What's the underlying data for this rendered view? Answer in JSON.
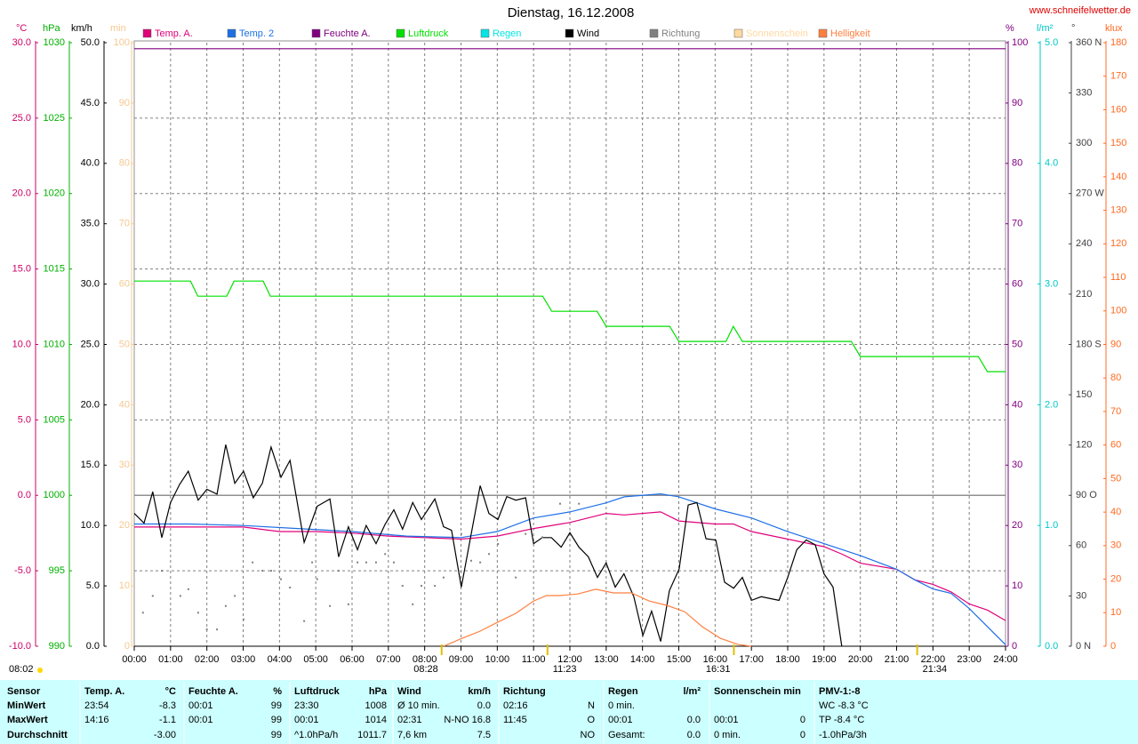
{
  "chart_data": {
    "type": "line",
    "title": "Dienstag, 16.12.2008",
    "watermark": "www.schneifelwetter.de",
    "sunrise_note": "08:02",
    "grid": true,
    "xlim": [
      0,
      24
    ],
    "xticks": [
      {
        "value": 0,
        "label": "00:00"
      },
      {
        "value": 1,
        "label": "01:00"
      },
      {
        "value": 2,
        "label": "02:00"
      },
      {
        "value": 3,
        "label": "03:00"
      },
      {
        "value": 4,
        "label": "04:00"
      },
      {
        "value": 5,
        "label": "05:00"
      },
      {
        "value": 6,
        "label": "06:00"
      },
      {
        "value": 7,
        "label": "07:00"
      },
      {
        "value": 8,
        "label": "08:00"
      },
      {
        "value": 9,
        "label": "09:00"
      },
      {
        "value": 10,
        "label": "10:00"
      },
      {
        "value": 11,
        "label": "11:00"
      },
      {
        "value": 12,
        "label": "12:00"
      },
      {
        "value": 13,
        "label": "13:00"
      },
      {
        "value": 14,
        "label": "14:00"
      },
      {
        "value": 15,
        "label": "15:00"
      },
      {
        "value": 16,
        "label": "16:00"
      },
      {
        "value": 17,
        "label": "17:00"
      },
      {
        "value": 18,
        "label": "18:00"
      },
      {
        "value": 19,
        "label": "19:00"
      },
      {
        "value": 20,
        "label": "20:00"
      },
      {
        "value": 21,
        "label": "21:00"
      },
      {
        "value": 22,
        "label": "22:00"
      },
      {
        "value": 23,
        "label": "23:00"
      },
      {
        "value": 24,
        "label": "24:00"
      }
    ],
    "axes": [
      {
        "label": "°C",
        "color": "#cc0066",
        "ylim": [
          -10,
          30
        ],
        "yticks": [
          {
            "value": -10,
            "label": "-10.0"
          },
          {
            "value": -5,
            "label": "-5.0"
          },
          {
            "value": 0,
            "label": "0.0"
          },
          {
            "value": 5,
            "label": "5.0"
          },
          {
            "value": 10,
            "label": "10.0"
          },
          {
            "value": 15,
            "label": "15.0"
          },
          {
            "value": 20,
            "label": "20.0"
          },
          {
            "value": 25,
            "label": "25.0"
          },
          {
            "value": 30,
            "label": "30.0"
          }
        ]
      },
      {
        "label": "hPa",
        "color": "#00b000",
        "ylim": [
          990,
          1030
        ],
        "yticks": [
          990,
          995,
          1000,
          1005,
          1010,
          1015,
          1020,
          1025,
          1030
        ]
      },
      {
        "label": "km/h",
        "color": "#000000",
        "ylim": [
          0,
          50
        ],
        "yticks": [
          {
            "value": 0,
            "label": "0.0"
          },
          {
            "value": 5,
            "label": "5.0"
          },
          {
            "value": 10,
            "label": "10.0"
          },
          {
            "value": 15,
            "label": "15.0"
          },
          {
            "value": 20,
            "label": "20.0"
          },
          {
            "value": 25,
            "label": "25.0"
          },
          {
            "value": 30,
            "label": "30.0"
          },
          {
            "value": 35,
            "label": "35.0"
          },
          {
            "value": 40,
            "label": "40.0"
          },
          {
            "value": 45,
            "label": "45.0"
          },
          {
            "value": 50,
            "label": "50.0"
          }
        ]
      },
      {
        "label": "min",
        "color": "#f5c890",
        "ylim": [
          0,
          100
        ],
        "yticks": [
          0,
          10,
          20,
          30,
          40,
          50,
          60,
          70,
          80,
          90,
          100
        ]
      },
      {
        "label": "%",
        "color": "#800080",
        "ylim": [
          0,
          100
        ],
        "yticks": [
          0,
          10,
          20,
          30,
          40,
          50,
          60,
          70,
          80,
          90,
          100
        ]
      },
      {
        "label": "l/m²",
        "color": "#00c8c8",
        "ylim": [
          0,
          5
        ],
        "yticks": [
          {
            "value": 0,
            "label": "0.0"
          },
          {
            "value": 1,
            "label": "1.0"
          },
          {
            "value": 2,
            "label": "2.0"
          },
          {
            "value": 3,
            "label": "3.0"
          },
          {
            "value": 4,
            "label": "4.0"
          },
          {
            "value": 5,
            "label": "5.0"
          }
        ]
      },
      {
        "label": "°",
        "color": "#404040",
        "ylim": [
          0,
          360
        ],
        "yticks": [
          {
            "value": 0,
            "label": "0 N"
          },
          30,
          60,
          {
            "value": 90,
            "label": "90 O"
          },
          120,
          150,
          {
            "value": 180,
            "label": "180 S"
          },
          210,
          240,
          {
            "value": 270,
            "label": "270 W"
          },
          300,
          330,
          {
            "value": 360,
            "label": "360 N"
          }
        ]
      },
      {
        "label": "klux",
        "color": "#ff6a20",
        "ylim": [
          0,
          180
        ],
        "yticks": [
          0,
          10,
          20,
          30,
          40,
          50,
          60,
          70,
          80,
          90,
          100,
          110,
          120,
          130,
          140,
          150,
          160,
          170,
          180
        ]
      }
    ],
    "reference_lines": [
      {
        "axis": 0,
        "value": 0
      }
    ],
    "series": [
      {
        "name": "Temp. A.",
        "type": "line",
        "axis": 0,
        "color": "#e0007a",
        "x": [
          0,
          1,
          2,
          3,
          4,
          5,
          6,
          7,
          8,
          9,
          10,
          11,
          12,
          13,
          13.5,
          14.5,
          15,
          16,
          16.5,
          17,
          18,
          19,
          19.5,
          20,
          21,
          21.5,
          22,
          22.5,
          23,
          23.5,
          24
        ],
        "values": [
          -2.1,
          -2.1,
          -2.1,
          -2.1,
          -2.4,
          -2.4,
          -2.5,
          -2.7,
          -2.8,
          -2.9,
          -2.7,
          -2.2,
          -1.8,
          -1.2,
          -1.3,
          -1.1,
          -1.7,
          -1.9,
          -1.9,
          -2.4,
          -2.9,
          -3.4,
          -3.9,
          -4.5,
          -4.9,
          -5.6,
          -5.9,
          -6.4,
          -7.2,
          -7.6,
          -8.3
        ]
      },
      {
        "name": "Temp. 2",
        "type": "line",
        "axis": 0,
        "color": "#1e6fe6",
        "x": [
          0,
          1.5,
          3,
          4.5,
          6,
          7.5,
          9,
          10,
          11,
          12,
          13,
          13.5,
          14.5,
          15,
          15.5,
          16,
          17,
          18,
          19,
          20,
          21,
          21.5,
          22,
          22.5,
          23,
          23.5,
          24
        ],
        "values": [
          -1.9,
          -1.9,
          -2.0,
          -2.2,
          -2.4,
          -2.7,
          -2.8,
          -2.4,
          -1.5,
          -1.1,
          -0.5,
          -0.1,
          0.1,
          -0.1,
          -0.5,
          -0.9,
          -1.5,
          -2.4,
          -3.2,
          -4.0,
          -4.9,
          -5.6,
          -6.2,
          -6.5,
          -7.5,
          -8.7,
          -9.9
        ]
      },
      {
        "name": "Feuchte A.",
        "type": "line",
        "axis": 4,
        "color": "#800080",
        "x": [
          0,
          24
        ],
        "values": [
          99,
          99
        ]
      },
      {
        "name": "Luftdruck",
        "type": "line",
        "axis": 1,
        "color": "#00e000",
        "x": [
          0,
          1.55,
          1.75,
          2.55,
          2.75,
          3.55,
          3.75,
          11.25,
          11.5,
          12.75,
          13,
          14.75,
          15,
          16.3,
          16.5,
          16.75,
          19.75,
          20,
          23.25,
          23.5,
          24
        ],
        "values": [
          1014.2,
          1014.2,
          1013.2,
          1013.2,
          1014.2,
          1014.2,
          1013.2,
          1013.2,
          1012.2,
          1012.2,
          1011.2,
          1011.2,
          1010.2,
          1010.2,
          1011.2,
          1010.2,
          1010.2,
          1009.2,
          1009.2,
          1008.2,
          1008.2
        ]
      },
      {
        "name": "Regen",
        "type": "line",
        "axis": 5,
        "color": "#00e5e5",
        "x": [],
        "values": []
      },
      {
        "name": "Wind",
        "type": "line",
        "axis": 2,
        "color": "#000000",
        "x": [
          0,
          0.27,
          0.51,
          0.76,
          1,
          1.25,
          1.49,
          1.76,
          2,
          2.28,
          2.52,
          2.77,
          3.01,
          3.28,
          3.53,
          3.77,
          4.04,
          4.29,
          4.68,
          5.04,
          5.39,
          5.63,
          5.9,
          6.15,
          6.39,
          6.66,
          6.91,
          7.15,
          7.39,
          7.67,
          7.91,
          8.28,
          8.52,
          8.74,
          9.01,
          9.53,
          9.77,
          10.02,
          10.26,
          10.51,
          10.78,
          11,
          11.24,
          11.49,
          11.76,
          12,
          12.25,
          12.51,
          12.76,
          13,
          13.25,
          13.49,
          13.76,
          14.01,
          14.25,
          14.5,
          14.74,
          15.01,
          15.26,
          15.5,
          15.75,
          16.02,
          16.26,
          16.51,
          16.75,
          17,
          17.27,
          17.76,
          18,
          18.25,
          18.51,
          18.76,
          19,
          19.25,
          19.49
        ],
        "values": [
          11.0,
          10.2,
          12.8,
          9.0,
          11.9,
          13.4,
          14.5,
          12.1,
          13.0,
          12.6,
          16.7,
          13.5,
          14.5,
          12.3,
          13.5,
          16.5,
          14.0,
          15.4,
          8.6,
          11.6,
          12.2,
          7.4,
          9.9,
          8.0,
          10.0,
          8.5,
          10.1,
          11.3,
          9.7,
          11.9,
          10.5,
          12.2,
          9.9,
          9.6,
          4.9,
          13.3,
          11.0,
          10.5,
          12.4,
          12.1,
          12.3,
          8.5,
          9.0,
          9.0,
          8.2,
          9.4,
          8.2,
          7.4,
          5.7,
          6.9,
          4.9,
          6.0,
          4.1,
          0.9,
          2.9,
          0.4,
          4.6,
          6.4,
          11.7,
          11.9,
          8.9,
          8.8,
          5.3,
          4.8,
          5.7,
          3.8,
          4.1,
          3.8,
          5.7,
          8.0,
          8.8,
          8.4,
          6.0,
          4.9,
          0.0
        ]
      },
      {
        "name": "Richtung",
        "type": "scatter",
        "axis": 6,
        "color": "#808080",
        "x": [
          0.24,
          0.51,
          0.76,
          1.27,
          1.49,
          1.76,
          2,
          2.28,
          2.52,
          2.77,
          3.01,
          3.26,
          3.53,
          3.77,
          4.04,
          4.29,
          4.68,
          4.9,
          5.04,
          5.39,
          5.63,
          5.9,
          6.15,
          6.39,
          6.66,
          6.91,
          7.15,
          7.39,
          7.67,
          7.91,
          8.28,
          8.52,
          9.01,
          9.28,
          9.53,
          9.77,
          10.02,
          10.51,
          10.78,
          11.24,
          11.73,
          12.25
        ],
        "values": [
          20,
          30,
          45,
          30,
          34,
          20,
          10,
          10,
          24,
          30,
          16,
          50,
          45,
          45,
          40,
          35,
          15,
          50,
          40,
          24,
          45,
          25,
          50,
          50,
          50,
          55,
          50,
          36,
          25,
          36,
          36,
          41,
          67,
          51,
          50,
          55,
          61,
          41,
          67,
          65,
          85,
          85
        ]
      },
      {
        "name": "Sonnenschein",
        "type": "line",
        "axis": 3,
        "color": "#ffd9a0",
        "x": [],
        "values": []
      },
      {
        "name": "Helligkeit",
        "type": "line",
        "axis": 7,
        "color": "#ff7f3f",
        "x": [
          8.52,
          9.04,
          9.53,
          10.02,
          10.51,
          11,
          11.36,
          11.73,
          12.22,
          12.71,
          13.2,
          13.69,
          14.18,
          14.67,
          15.16,
          15.65,
          16.14,
          16.63,
          17
        ],
        "values": [
          0,
          2.4,
          4.5,
          7.2,
          9.8,
          13.5,
          15.1,
          15.1,
          15.6,
          17.0,
          15.9,
          15.9,
          13.5,
          12.2,
          10.3,
          5.8,
          2.4,
          0.5,
          0
        ]
      }
    ],
    "annotations": [
      {
        "label": "08:28",
        "x": 8.467
      },
      {
        "label": "11:23",
        "x": 11.383
      },
      {
        "label": "16:31",
        "x": 16.517
      },
      {
        "label": "21:34",
        "x": 21.567
      }
    ]
  },
  "table": {
    "header_label": "Sensor",
    "columns": [
      {
        "title": "Temp. A.",
        "unit": "°C"
      },
      {
        "title": "Feuchte A.",
        "unit": "%"
      },
      {
        "title": "Luftdruck",
        "unit": "hPa"
      },
      {
        "title": "Wind",
        "unit": "km/h"
      },
      {
        "title": "Richtung"
      },
      {
        "title": "Regen",
        "unit": "l/m²"
      },
      {
        "title": "Sonnenschein min"
      },
      {
        "title": "PMV-1:-8"
      }
    ],
    "rows": [
      {
        "label": "MinWert",
        "cells": [
          {
            "left": "23:54",
            "right": "-8.3"
          },
          {
            "left": "00:01",
            "right": "99"
          },
          {
            "left": "23:30",
            "right": "1008"
          },
          {
            "left": "Ø 10 min.",
            "right": "0.0"
          },
          {
            "left": "02:16",
            "right": "N"
          },
          {
            "left": "0 min."
          },
          {},
          {
            "left": "WC -8.3 °C"
          }
        ]
      },
      {
        "label": "MaxWert",
        "cells": [
          {
            "left": "14:16",
            "right": "-1.1"
          },
          {
            "left": "00:01",
            "right": "99"
          },
          {
            "left": "00:01",
            "right": "1014"
          },
          {
            "left": "02:31",
            "right": "N-NO 16.8"
          },
          {
            "left": "11:45",
            "right": "O"
          },
          {
            "left": "00:01",
            "right": "0.0"
          },
          {
            "left": "00:01",
            "right": "0"
          },
          {
            "left": "TP -8.4 °C"
          }
        ]
      },
      {
        "label": "Durchschnitt",
        "cells": [
          {
            "right": "-3.00"
          },
          {
            "right": "99"
          },
          {
            "left": "^1.0hPa/h",
            "right": "1011.7"
          },
          {
            "left": "7,6 km",
            "right": "7.5"
          },
          {
            "right": "NO"
          },
          {
            "left": "Gesamt:",
            "right": "0.0"
          },
          {
            "left": "0 min.",
            "right": "0"
          },
          {
            "left": "-1.0hPa/3h"
          }
        ]
      }
    ]
  }
}
